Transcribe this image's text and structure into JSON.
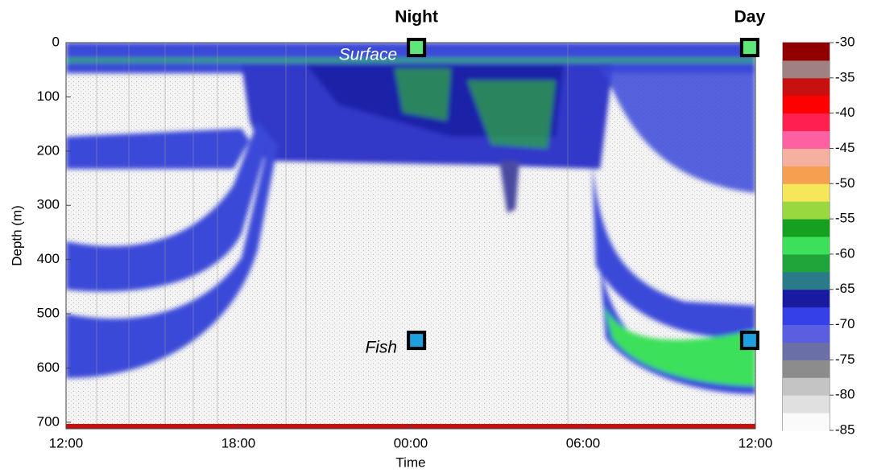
{
  "chart_data": {
    "type": "echogram",
    "xlabel": "Time",
    "ylabel": "Depth (m)",
    "xlim": [
      0,
      24
    ],
    "xticks": [
      {
        "value": 0,
        "label": "12:00"
      },
      {
        "value": 6,
        "label": "18:00"
      },
      {
        "value": 12,
        "label": "00:00"
      },
      {
        "value": 18,
        "label": "06:00"
      },
      {
        "value": 24,
        "label": "12:00"
      }
    ],
    "ylim": [
      0,
      712
    ],
    "y_inverted": true,
    "yticks": [
      0,
      100,
      200,
      300,
      400,
      500,
      600,
      700
    ],
    "clim": [
      -85,
      -30
    ],
    "cticks": [
      -30,
      -35,
      -40,
      -45,
      -50,
      -55,
      -60,
      -65,
      -70,
      -75,
      -80,
      -85
    ],
    "colormap": [
      "#fafafa",
      "#e0e0e0",
      "#c4c4c4",
      "#8c8c8c",
      "#6b6fa8",
      "#5a5ee0",
      "#3540e6",
      "#1a1aa0",
      "#2a7a8a",
      "#1fa53a",
      "#3ce05a",
      "#15a020",
      "#9ad840",
      "#f5e65a",
      "#f5a050",
      "#f5b0a0",
      "#ff60a0",
      "#ff2050",
      "#ff0000",
      "#c81010",
      "#a08080",
      "#900000"
    ],
    "period_labels": [
      "Night",
      "Day"
    ],
    "markers": [
      {
        "name": "Surface",
        "color": "#5ee87a",
        "x": [
          12.2,
          23.8
        ],
        "y": [
          9,
          9
        ]
      },
      {
        "name": "Fish",
        "color": "#1e9fe0",
        "x": [
          12.2,
          23.8
        ],
        "y": [
          549,
          549
        ]
      }
    ]
  }
}
